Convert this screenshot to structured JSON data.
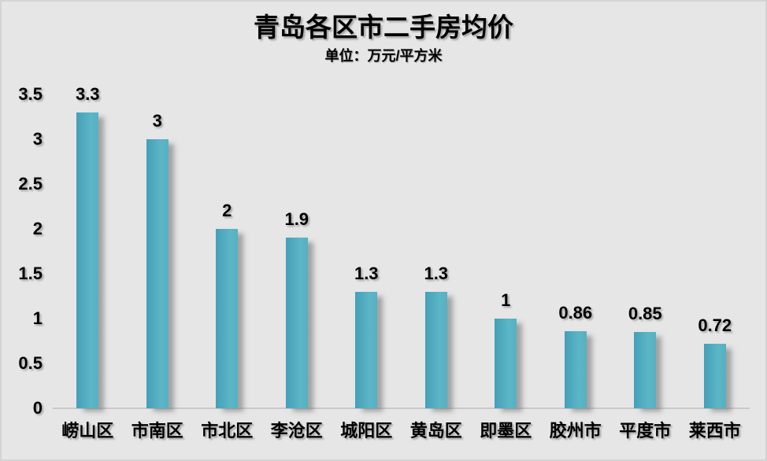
{
  "chart_data": {
    "type": "bar",
    "title": "青岛各区市二手房均价",
    "subtitle": "单位：万元/平方米",
    "categories": [
      "崂山区",
      "市南区",
      "市北区",
      "李沧区",
      "城阳区",
      "黄岛区",
      "即墨区",
      "胶州市",
      "平度市",
      "莱西市"
    ],
    "values": [
      3.3,
      3,
      2,
      1.9,
      1.3,
      1.3,
      1,
      0.86,
      0.85,
      0.72
    ],
    "value_labels": [
      "3.3",
      "3",
      "2",
      "1.9",
      "1.3",
      "1.3",
      "1",
      "0.86",
      "0.85",
      "0.72"
    ],
    "xlabel": "",
    "ylabel": "",
    "ylim": [
      0,
      3.5
    ],
    "ytick_labels": [
      "0",
      "0.5",
      "1",
      "1.5",
      "2",
      "2.5",
      "3",
      "3.5"
    ],
    "grid": false,
    "legend": "none",
    "colors": {
      "background": "#e6e6e6",
      "bar_gradient_left": "#459fb8",
      "bar_gradient_mid": "#5bb6c6",
      "bar_gradient_right": "#56b0c2",
      "axis_line": "#c9c9c9",
      "text": "#000000"
    }
  }
}
